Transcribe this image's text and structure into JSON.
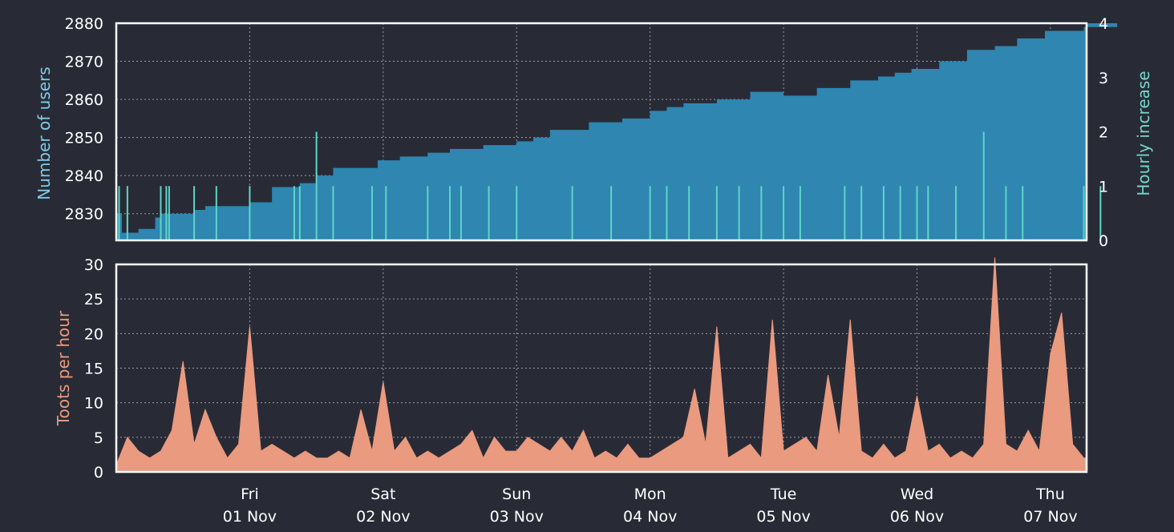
{
  "chart_data": [
    {
      "type": "area",
      "ylabel": "Number of users",
      "ylabel_right": "Hourly increase",
      "ylim": [
        2823,
        2880
      ],
      "yticks": [
        "2830",
        "2840",
        "2850",
        "2860",
        "2870",
        "2880"
      ],
      "y2lim": [
        0,
        4
      ],
      "y2ticks": [
        "0",
        "1",
        "2",
        "3",
        "4"
      ],
      "grid": true,
      "colors": {
        "users": "#2e86b1",
        "increase": "#5fd5c8",
        "label": "#7ecbe8",
        "label_right": "#76d6cc"
      },
      "series": [
        {
          "key": "users",
          "x": [
            "2019-10-31T00:00",
            "2019-10-31T01:00",
            "2019-10-31T04:00",
            "2019-10-31T07:00",
            "2019-10-31T08:00",
            "2019-10-31T14:00",
            "2019-10-31T16:00",
            "2019-11-01T00:00",
            "2019-11-01T04:00",
            "2019-11-01T09:00",
            "2019-11-01T12:00",
            "2019-11-01T15:00",
            "2019-11-01T23:00",
            "2019-11-02T03:00",
            "2019-11-02T08:00",
            "2019-11-02T12:00",
            "2019-11-02T18:00",
            "2019-11-03T00:00",
            "2019-11-03T03:00",
            "2019-11-03T06:00",
            "2019-11-03T13:00",
            "2019-11-03T19:00",
            "2019-11-04T00:00",
            "2019-11-04T03:00",
            "2019-11-04T06:00",
            "2019-11-04T12:00",
            "2019-11-04T18:00",
            "2019-11-05T00:00",
            "2019-11-05T06:00",
            "2019-11-05T12:00",
            "2019-11-05T17:00",
            "2019-11-05T20:00",
            "2019-11-05T23:00",
            "2019-11-06T04:00",
            "2019-11-06T09:00",
            "2019-11-06T14:00",
            "2019-11-06T18:00",
            "2019-11-06T23:00",
            "2019-11-07T06:00",
            "2019-11-07T12:00"
          ],
          "values": [
            2830,
            2825,
            2826,
            2829,
            2830,
            2831,
            2832,
            2833,
            2837,
            2838,
            2840,
            2842,
            2844,
            2845,
            2846,
            2847,
            2848,
            2849,
            2850,
            2852,
            2854,
            2855,
            2857,
            2858,
            2859,
            2860,
            2862,
            2861,
            2863,
            2865,
            2866,
            2867,
            2868,
            2870,
            2873,
            2874,
            2876,
            2878,
            2879,
            2880
          ]
        },
        {
          "key": "increase",
          "x": [
            "2019-10-31T00:30",
            "2019-10-31T02:00",
            "2019-10-31T08:00",
            "2019-10-31T09:00",
            "2019-10-31T09:30",
            "2019-10-31T14:00",
            "2019-10-31T18:00",
            "2019-11-01T00:00",
            "2019-11-01T08:00",
            "2019-11-01T09:00",
            "2019-11-01T12:00",
            "2019-11-01T15:00",
            "2019-11-01T22:00",
            "2019-11-02T00:30",
            "2019-11-02T08:00",
            "2019-11-02T12:00",
            "2019-11-02T14:00",
            "2019-11-02T19:00",
            "2019-11-03T00:00",
            "2019-11-03T10:00",
            "2019-11-03T17:00",
            "2019-11-04T00:00",
            "2019-11-04T03:00",
            "2019-11-04T07:00",
            "2019-11-04T12:00",
            "2019-11-04T16:00",
            "2019-11-04T20:00",
            "2019-11-05T00:00",
            "2019-11-05T03:00",
            "2019-11-05T11:00",
            "2019-11-05T14:00",
            "2019-11-05T18:00",
            "2019-11-05T21:00",
            "2019-11-06T00:00",
            "2019-11-06T02:00",
            "2019-11-06T07:00",
            "2019-11-06T12:00",
            "2019-11-06T16:00",
            "2019-11-06T19:00",
            "2019-11-07T06:00",
            "2019-11-07T09:00"
          ],
          "values": [
            1,
            1,
            1,
            1,
            1,
            1,
            1,
            1,
            1,
            1,
            2,
            1,
            1,
            1,
            1,
            1,
            1,
            1,
            1,
            1,
            1,
            1,
            1,
            1,
            1,
            1,
            1,
            1,
            1,
            1,
            1,
            1,
            1,
            1,
            1,
            1,
            2,
            1,
            1,
            1,
            1
          ]
        }
      ],
      "xticks": [
        {
          "x": "2019-11-01",
          "day": "Fri",
          "date": "01 Nov"
        },
        {
          "x": "2019-11-02",
          "day": "Sat",
          "date": "02 Nov"
        },
        {
          "x": "2019-11-03",
          "day": "Sun",
          "date": "03 Nov"
        },
        {
          "x": "2019-11-04",
          "day": "Mon",
          "date": "04 Nov"
        },
        {
          "x": "2019-11-05",
          "day": "Tue",
          "date": "05 Nov"
        },
        {
          "x": "2019-11-06",
          "day": "Wed",
          "date": "06 Nov"
        },
        {
          "x": "2019-11-07",
          "day": "Thu",
          "date": "07 Nov"
        }
      ],
      "xlim": [
        "2019-10-31T00:00",
        "2019-11-07T06:30"
      ]
    },
    {
      "type": "area",
      "ylabel": "Toots per hour",
      "ylim": [
        0,
        30
      ],
      "yticks": [
        "0",
        "5",
        "10",
        "15",
        "20",
        "25",
        "30"
      ],
      "grid": true,
      "colors": {
        "fill": "#e99a7f",
        "label": "#e99a7f"
      },
      "xlim": [
        "2019-10-31T00:00",
        "2019-11-07T06:30"
      ],
      "x": [
        "2019-10-31T00:00",
        "2019-10-31T02:00",
        "2019-10-31T04:00",
        "2019-10-31T06:00",
        "2019-10-31T08:00",
        "2019-10-31T10:00",
        "2019-10-31T12:00",
        "2019-10-31T14:00",
        "2019-10-31T16:00",
        "2019-10-31T18:00",
        "2019-10-31T20:00",
        "2019-10-31T22:00",
        "2019-11-01T00:00",
        "2019-11-01T02:00",
        "2019-11-01T04:00",
        "2019-11-01T06:00",
        "2019-11-01T08:00",
        "2019-11-01T10:00",
        "2019-11-01T12:00",
        "2019-11-01T14:00",
        "2019-11-01T16:00",
        "2019-11-01T18:00",
        "2019-11-01T20:00",
        "2019-11-01T22:00",
        "2019-11-02T00:00",
        "2019-11-02T02:00",
        "2019-11-02T04:00",
        "2019-11-02T06:00",
        "2019-11-02T08:00",
        "2019-11-02T10:00",
        "2019-11-02T12:00",
        "2019-11-02T14:00",
        "2019-11-02T16:00",
        "2019-11-02T18:00",
        "2019-11-02T20:00",
        "2019-11-02T22:00",
        "2019-11-03T00:00",
        "2019-11-03T02:00",
        "2019-11-03T04:00",
        "2019-11-03T06:00",
        "2019-11-03T08:00",
        "2019-11-03T10:00",
        "2019-11-03T12:00",
        "2019-11-03T14:00",
        "2019-11-03T16:00",
        "2019-11-03T18:00",
        "2019-11-03T20:00",
        "2019-11-03T22:00",
        "2019-11-04T00:00",
        "2019-11-04T02:00",
        "2019-11-04T04:00",
        "2019-11-04T06:00",
        "2019-11-04T08:00",
        "2019-11-04T10:00",
        "2019-11-04T12:00",
        "2019-11-04T14:00",
        "2019-11-04T16:00",
        "2019-11-04T18:00",
        "2019-11-04T20:00",
        "2019-11-04T22:00",
        "2019-11-05T00:00",
        "2019-11-05T02:00",
        "2019-11-05T04:00",
        "2019-11-05T06:00",
        "2019-11-05T08:00",
        "2019-11-05T10:00",
        "2019-11-05T12:00",
        "2019-11-05T14:00",
        "2019-11-05T16:00",
        "2019-11-05T18:00",
        "2019-11-05T20:00",
        "2019-11-05T22:00",
        "2019-11-06T00:00",
        "2019-11-06T02:00",
        "2019-11-06T04:00",
        "2019-11-06T06:00",
        "2019-11-06T08:00",
        "2019-11-06T10:00",
        "2019-11-06T12:00",
        "2019-11-06T14:00",
        "2019-11-06T16:00",
        "2019-11-06T18:00",
        "2019-11-06T20:00",
        "2019-11-06T22:00",
        "2019-11-07T00:00",
        "2019-11-07T02:00",
        "2019-11-07T04:00",
        "2019-11-07T06:00"
      ],
      "values": [
        1,
        5,
        3,
        2,
        3,
        6,
        16,
        4,
        9,
        5,
        2,
        4,
        21,
        3,
        4,
        3,
        2,
        3,
        2,
        2,
        3,
        2,
        9,
        3,
        13,
        3,
        5,
        2,
        3,
        2,
        3,
        4,
        6,
        2,
        5,
        3,
        3,
        5,
        4,
        3,
        5,
        3,
        6,
        2,
        3,
        2,
        4,
        2,
        2,
        3,
        4,
        5,
        12,
        4,
        21,
        2,
        3,
        4,
        2,
        22,
        3,
        4,
        5,
        3,
        14,
        5,
        22,
        3,
        2,
        4,
        2,
        3,
        11,
        3,
        4,
        2,
        3,
        2,
        4,
        31,
        4,
        3,
        6,
        3,
        17,
        23,
        4,
        2
      ]
    }
  ]
}
